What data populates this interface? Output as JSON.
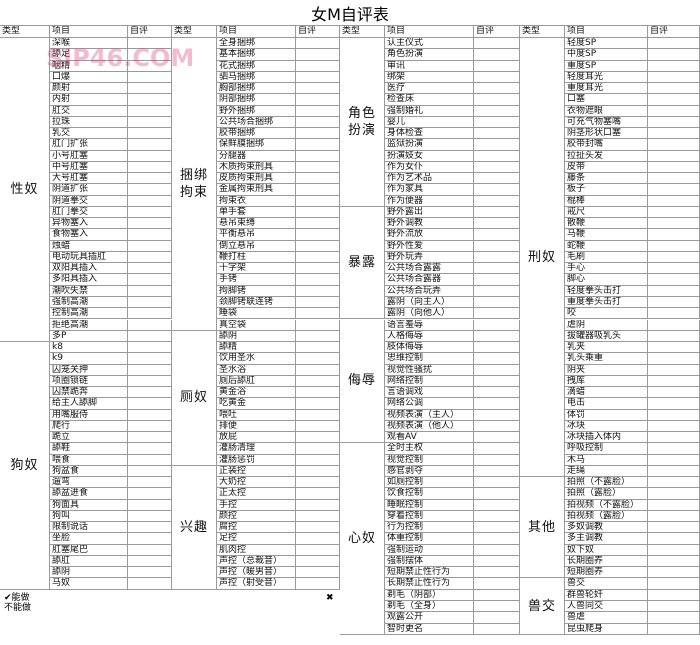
{
  "title": "女M自评表",
  "headers": [
    "类型",
    "项目",
    "自评"
  ],
  "groups": [
    [
      {
        "type": "性奴",
        "items": [
          "深喉",
          "舔足",
          "咽精",
          "口爆",
          "颜射",
          "内射",
          "肛交",
          "拉珠",
          "乳交",
          "肛门扩张",
          "小号肛塞",
          "中号肛塞",
          "大号肛塞",
          "阴道扩张",
          "阴道拳交",
          "肛门拳交",
          "异物塞入",
          "食物塞入",
          "烛蜡",
          "电动玩具插肛",
          "双阳具插入",
          "多阳具插入",
          "潮吹失禁",
          "强制高潮",
          "控制高潮",
          "拒绝高潮",
          "多P"
        ]
      },
      {
        "type": "狗奴",
        "items": [
          "k8",
          "k9",
          "囚笼关押",
          "项圈锁链",
          "囚禁跪奔",
          "给主人舔脚",
          "用嘴服侍",
          "爬行",
          "跪立",
          "舔鞋",
          "喂食",
          "狗盆食",
          "遛弯",
          "舔盆进食",
          "狗面具",
          "狗叫",
          "限制说话",
          "坐脸",
          "肛塞尾巴",
          "舔肛",
          "舔阴",
          "马奴"
        ]
      }
    ],
    [
      {
        "type": "捆绑拘束",
        "items": [
          "全身捆绑",
          "基本捆绑",
          "花式捆绑",
          "驷马捆绑",
          "胸部捆绑",
          "阴部捆绑",
          "野外捆绑",
          "公共场合捆绑",
          "胶带捆绑",
          "保鲜膜捆绑",
          "分腿器",
          "木质拘束刑具",
          "皮质拘束刑具",
          "金属拘束刑具",
          "拘束衣",
          "单手套",
          "悬吊束缚",
          "平衡悬吊",
          "倒立悬吊",
          "鞭打柱",
          "十字架",
          "手铐",
          "拘脚铐",
          "颈脚铐联连铐",
          "睡袋",
          "真空袋"
        ]
      },
      {
        "type": "厕奴",
        "items": [
          "舔阴",
          "舔精",
          "饮用圣水",
          "圣水浴",
          "厕后舔肛",
          "黄金浴",
          "吃黄金",
          "喂吐",
          "排便",
          "放屁",
          "灌肠清理",
          "灌肠惩罚"
        ]
      },
      {
        "type": "兴趣",
        "items": [
          "正装控",
          "大奶控",
          "正太控",
          "手控",
          "颜控",
          "腐控",
          "足控",
          "肌肉控",
          "声控（总裁音）",
          "声控（暖男音）",
          "声控（射受音）"
        ]
      }
    ],
    [
      {
        "type": "角色扮演",
        "items": [
          "认主仪式",
          "角色扮演",
          "审讯",
          "绑架",
          "医疗",
          "检查床",
          "强制婚礼",
          "婴儿",
          "身体检查",
          "监狱扮演",
          "扮演妓女",
          "作为女仆",
          "作为艺术品",
          "作为家具",
          "作为便器"
        ]
      },
      {
        "type": "暴露",
        "items": [
          "野外露出",
          "野外调教",
          "野外流放",
          "野外性爱",
          "野外玩弄",
          "公共场合露露",
          "公共场合露器",
          "公共场合玩弄",
          "露阴（向主人）",
          "露阴（向他人）"
        ]
      },
      {
        "type": "侮辱",
        "items": [
          "语言羞辱",
          "人格侮辱",
          "肢体侮辱",
          "思维控制",
          "视觉性骚扰",
          "网络控制",
          "言语调戏",
          "网络公调",
          "视频表演（主人）",
          "视频表演（他人）",
          "观看AV"
        ]
      },
      {
        "type": "心奴",
        "items": [
          "全时主权",
          "视觉控制",
          "感官剥夺",
          "如厕控制",
          "饮食控制",
          "睡眠控制",
          "穿着控制",
          "行为控制",
          "体重控制",
          "强制运动",
          "强制摆体",
          "短期禁止性行为",
          "长期禁止性行为",
          "剃毛（阴部）",
          "剃毛（全身）",
          "观露公开",
          "智时更名"
        ]
      }
    ],
    [
      {
        "type": "刑奴",
        "items": [
          "轻度SP",
          "中度SP",
          "重度SP",
          "轻度耳光",
          "重度耳光",
          "口塞",
          "衣物遮眼",
          "可充气物塞嘴",
          "阴茎形状口塞",
          "胶带封嘴",
          "拉扯头发",
          "皮带",
          "藤条",
          "板子",
          "棍棒",
          "戒尺",
          "散鞭",
          "马鞭",
          "蛇鞭",
          "毛刷",
          "手心",
          "脚心",
          "轻度拳头击打",
          "重度拳头击打",
          "咬",
          "虐阴",
          "拔罐器吸乳头",
          "乳夹",
          "乳头乘重",
          "阴夹",
          "拽库",
          "滴蜡",
          "电击",
          "体罚",
          "冰块",
          "冰块插入体内",
          "呼吸控制",
          "木马",
          "走绳"
        ]
      },
      {
        "type": "其他",
        "items": [
          "拍照（不露脸）",
          "拍照（露脸）",
          "拍视频（不露脸）",
          "拍视频（露脸）",
          "多奴调教",
          "多主调教",
          "奴下奴",
          "长期圈养",
          "短期圈养"
        ]
      },
      {
        "type": "兽交",
        "items": [
          "兽交",
          "群兽轮奸",
          "人兽同交",
          "兽虐",
          "昆虫爬身"
        ]
      }
    ]
  ],
  "legend": [
    "✔能做",
    "不能做"
  ],
  "cross": "✖",
  "watermark": "SIP46.COM"
}
